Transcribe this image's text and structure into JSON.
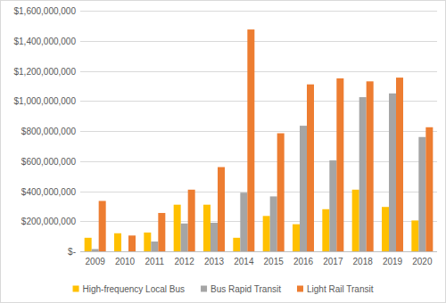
{
  "chart_data": {
    "type": "bar",
    "categories": [
      "2009",
      "2010",
      "2011",
      "2012",
      "2013",
      "2014",
      "2015",
      "2016",
      "2017",
      "2018",
      "2019",
      "2020"
    ],
    "series": [
      {
        "name": "High-frequency Local Bus",
        "color": "#ffc000",
        "values": [
          90000000,
          120000000,
          125000000,
          310000000,
          310000000,
          90000000,
          235000000,
          180000000,
          280000000,
          410000000,
          295000000,
          205000000
        ]
      },
      {
        "name": "Bus Rapid Transit",
        "color": "#a5a5a5",
        "values": [
          15000000,
          0,
          65000000,
          185000000,
          190000000,
          390000000,
          365000000,
          835000000,
          605000000,
          1025000000,
          1050000000,
          760000000
        ]
      },
      {
        "name": "Light Rail Transit",
        "color": "#ed7d31",
        "values": [
          335000000,
          105000000,
          255000000,
          410000000,
          560000000,
          1475000000,
          785000000,
          1110000000,
          1150000000,
          1130000000,
          1155000000,
          825000000
        ]
      }
    ],
    "ylim": [
      0,
      1600000000
    ],
    "yticks": [
      {
        "value": 0,
        "label": "$-"
      },
      {
        "value": 200000000,
        "label": "$200,000,000"
      },
      {
        "value": 400000000,
        "label": "$400,000,000"
      },
      {
        "value": 600000000,
        "label": "$600,000,000"
      },
      {
        "value": 800000000,
        "label": "$800,000,000"
      },
      {
        "value": 1000000000,
        "label": "$1,000,000,000"
      },
      {
        "value": 1200000000,
        "label": "$1,200,000,000"
      },
      {
        "value": 1400000000,
        "label": "$1,400,000,000"
      },
      {
        "value": 1600000000,
        "label": "$1,600,000,000"
      }
    ],
    "grid": true,
    "legend": "bottom"
  }
}
